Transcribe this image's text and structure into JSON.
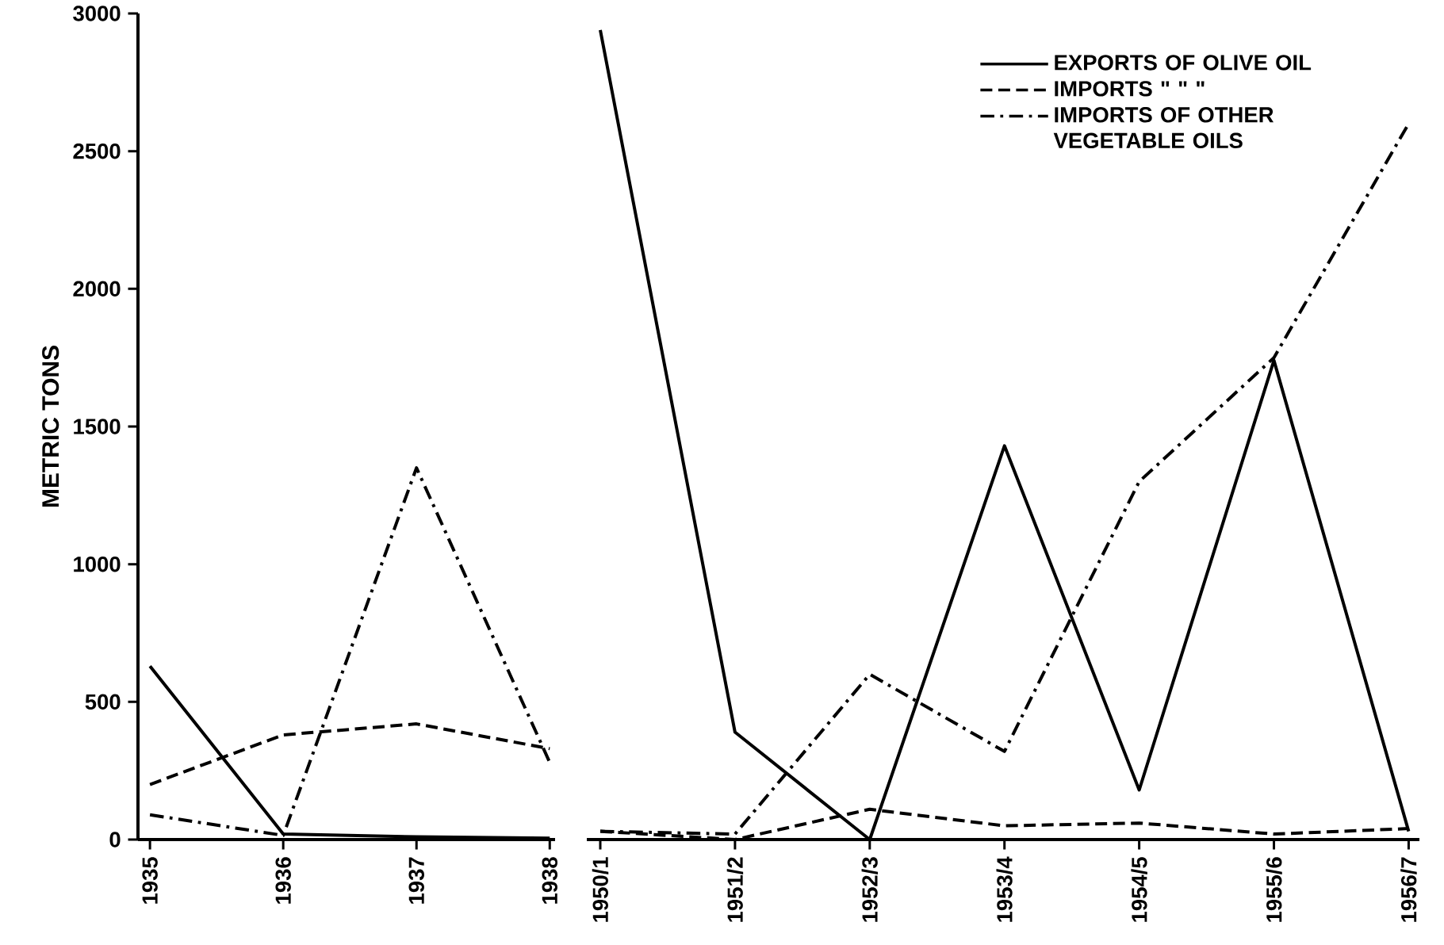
{
  "chart_data": [
    {
      "type": "line",
      "ylabel": "METRIC TONS",
      "categories": [
        "1935",
        "1936",
        "1937",
        "1938"
      ],
      "ylim": [
        0,
        3000
      ],
      "yticks": [
        0,
        500,
        1000,
        1500,
        2000,
        2500,
        3000
      ],
      "legend": false,
      "series": [
        {
          "color": "#000000",
          "line_style": "solid",
          "values": [
            630,
            20,
            10,
            5
          ]
        },
        {
          "color": "#000000",
          "line_style": "dashed",
          "values": [
            200,
            380,
            420,
            330
          ]
        },
        {
          "color": "#000000",
          "line_style": "dashdot",
          "values": [
            90,
            15,
            1350,
            280
          ]
        }
      ]
    },
    {
      "type": "line",
      "categories": [
        "1950/1",
        "1951/2",
        "1952/3",
        "1953/4",
        "1954/5",
        "1955/6",
        "1956/7"
      ],
      "ylim": [
        0,
        3000
      ],
      "yticks": [
        0,
        500,
        1000,
        1500,
        2000,
        2500,
        3000
      ],
      "tick_labels": "x",
      "legend": "top right",
      "series": [
        {
          "name": "EXPORTS OF OLIVE OIL",
          "color": "#000000",
          "line_style": "solid",
          "values": [
            2940,
            390,
            0,
            1430,
            180,
            1740,
            30
          ]
        },
        {
          "name": "IMPORTS \"   \"   \"",
          "color": "#000000",
          "line_style": "dashed",
          "values": [
            30,
            0,
            110,
            50,
            60,
            20,
            40
          ]
        },
        {
          "name": "IMPORTS OF OTHER VEGETABLE OILS",
          "color": "#000000",
          "line_style": "dashdot",
          "values": [
            30,
            20,
            600,
            320,
            1300,
            1750,
            2600
          ]
        }
      ]
    }
  ]
}
